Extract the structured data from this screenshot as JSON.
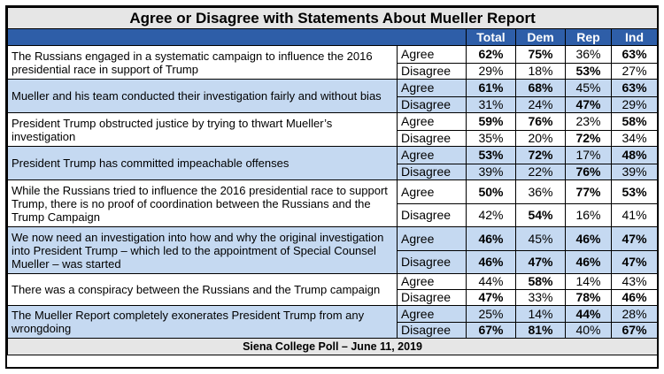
{
  "chart_data": {
    "type": "table",
    "title": "Agree or Disagree with Statements About Mueller Report",
    "columns": [
      "Total",
      "Dem",
      "Rep",
      "Ind"
    ],
    "rows": [
      {
        "statement": "The Russians engaged in a systematic campaign to influence the 2016 presidential race in support of Trump",
        "agree": {
          "label": "Agree",
          "values": [
            "62%",
            "75%",
            "36%",
            "63%"
          ],
          "bold": [
            true,
            true,
            false,
            true
          ]
        },
        "disagree": {
          "label": "Disagree",
          "values": [
            "29%",
            "18%",
            "53%",
            "27%"
          ],
          "bold": [
            false,
            false,
            true,
            false
          ]
        }
      },
      {
        "statement": "Mueller and his team conducted their investigation fairly and without bias",
        "agree": {
          "label": "Agree",
          "values": [
            "61%",
            "68%",
            "45%",
            "63%"
          ],
          "bold": [
            true,
            true,
            false,
            true
          ]
        },
        "disagree": {
          "label": "Disagree",
          "values": [
            "31%",
            "24%",
            "47%",
            "29%"
          ],
          "bold": [
            false,
            false,
            true,
            false
          ]
        }
      },
      {
        "statement": "President Trump obstructed justice by trying to thwart Mueller’s investigation",
        "agree": {
          "label": "Agree",
          "values": [
            "59%",
            "76%",
            "23%",
            "58%"
          ],
          "bold": [
            true,
            true,
            false,
            true
          ]
        },
        "disagree": {
          "label": "Disagree",
          "values": [
            "35%",
            "20%",
            "72%",
            "34%"
          ],
          "bold": [
            false,
            false,
            true,
            false
          ]
        }
      },
      {
        "statement": "President Trump has committed impeachable offenses",
        "agree": {
          "label": "Agree",
          "values": [
            "53%",
            "72%",
            "17%",
            "48%"
          ],
          "bold": [
            true,
            true,
            false,
            true
          ]
        },
        "disagree": {
          "label": "Disagree",
          "values": [
            "39%",
            "22%",
            "76%",
            "39%"
          ],
          "bold": [
            false,
            false,
            true,
            false
          ]
        }
      },
      {
        "statement": "While the Russians tried to influence the 2016 presidential race to support Trump, there is no proof of coordination between the Russians and the Trump Campaign",
        "agree": {
          "label": "Agree",
          "values": [
            "50%",
            "36%",
            "77%",
            "53%"
          ],
          "bold": [
            true,
            false,
            true,
            true
          ]
        },
        "disagree": {
          "label": "Disagree",
          "values": [
            "42%",
            "54%",
            "16%",
            "41%"
          ],
          "bold": [
            false,
            true,
            false,
            false
          ]
        }
      },
      {
        "statement": "We now need an investigation into how and why the original investigation into President Trump – which led to the appointment of Special Counsel Mueller – was started",
        "agree": {
          "label": "Agree",
          "values": [
            "46%",
            "45%",
            "46%",
            "47%"
          ],
          "bold": [
            true,
            false,
            true,
            true
          ]
        },
        "disagree": {
          "label": "Disagree",
          "values": [
            "46%",
            "47%",
            "46%",
            "47%"
          ],
          "bold": [
            true,
            true,
            true,
            true
          ]
        }
      },
      {
        "statement": "There was a conspiracy between the Russians and the Trump campaign",
        "agree": {
          "label": "Agree",
          "values": [
            "44%",
            "58%",
            "14%",
            "43%"
          ],
          "bold": [
            false,
            true,
            false,
            false
          ]
        },
        "disagree": {
          "label": "Disagree",
          "values": [
            "47%",
            "33%",
            "78%",
            "46%"
          ],
          "bold": [
            true,
            false,
            true,
            true
          ]
        }
      },
      {
        "statement": "The Mueller Report completely exonerates President Trump from any wrongdoing",
        "agree": {
          "label": "Agree",
          "values": [
            "25%",
            "14%",
            "44%",
            "28%"
          ],
          "bold": [
            false,
            false,
            true,
            false
          ]
        },
        "disagree": {
          "label": "Disagree",
          "values": [
            "67%",
            "81%",
            "40%",
            "67%"
          ],
          "bold": [
            true,
            true,
            false,
            true
          ]
        }
      }
    ],
    "footer": "Siena College Poll – June 11, 2019"
  },
  "colors": {
    "header_bg": "#2e5ea8",
    "header_text": "#ffffff",
    "title_bg": "#e6e6e6",
    "alt_row_bg": "#c5d9f1",
    "row_bg": "#ffffff"
  }
}
